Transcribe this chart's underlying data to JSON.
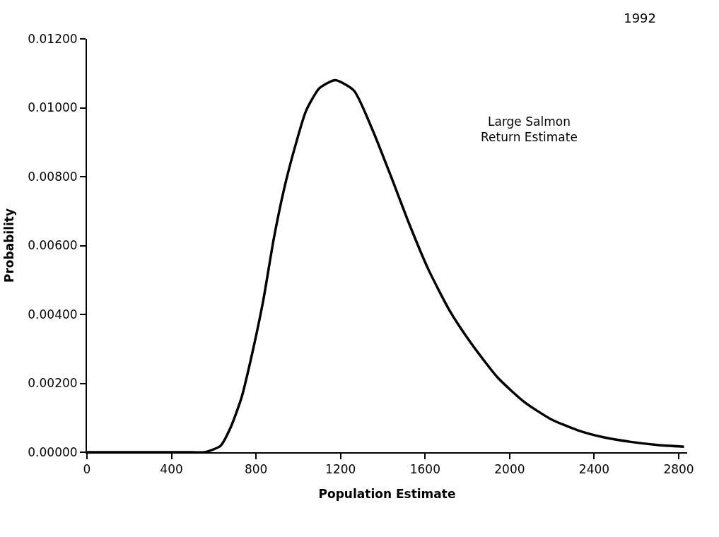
{
  "chart_data": {
    "type": "line",
    "title": "1992",
    "xlabel": "Population Estimate",
    "ylabel": "Probability",
    "annotations": [
      "Large Salmon\nReturn Estimate"
    ],
    "x": [
      0,
      300,
      500,
      555,
      631,
      682,
      732,
      783,
      834,
      884,
      935,
      986,
      1036,
      1100,
      1175,
      1263,
      1351,
      1439,
      1528,
      1616,
      1717,
      1817,
      1943,
      2069,
      2195,
      2321,
      2447,
      2573,
      2699,
      2825
    ],
    "series": [
      {
        "color": "#000000",
        "values": [
          0,
          0,
          0,
          0,
          0.00018,
          0.00075,
          0.0016,
          0.0029,
          0.0044,
          0.0062,
          0.0077,
          0.0089,
          0.0099,
          0.01057,
          0.0108,
          0.0105,
          0.00936,
          0.008,
          0.00658,
          0.0053,
          0.0041,
          0.00317,
          0.00217,
          0.00146,
          0.00096,
          0.00064,
          0.00043,
          0.0003,
          0.00021,
          0.00016
        ]
      }
    ],
    "xlim": [
      0,
      2840
    ],
    "xticks": [
      0,
      400,
      800,
      1200,
      1600,
      2000,
      2400,
      2800
    ],
    "ylim": [
      0,
      0.012
    ],
    "yticks": [
      {
        "value": 0,
        "label": "0.00000"
      },
      {
        "value": 0.002,
        "label": "0.00200"
      },
      {
        "value": 0.004,
        "label": "0.00400"
      },
      {
        "value": 0.006,
        "label": "0.00600"
      },
      {
        "value": 0.008,
        "label": "0.00800"
      },
      {
        "value": 0.01,
        "label": "0.01000"
      },
      {
        "value": 0.012,
        "label": "0.01200"
      }
    ],
    "marker": "none",
    "line_style": "solid"
  }
}
